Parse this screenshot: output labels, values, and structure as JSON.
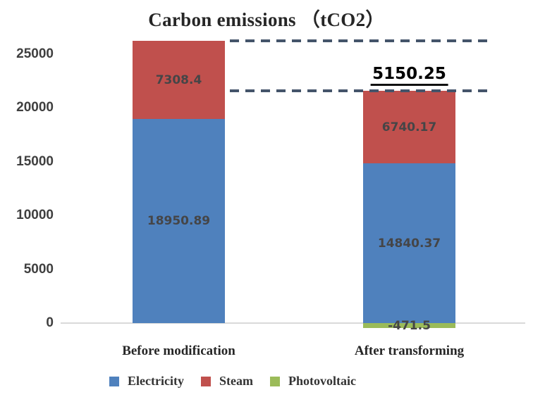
{
  "chart_data": {
    "type": "bar",
    "stacked": true,
    "title": "Carbon emissions （tCO2）",
    "categories": [
      "Before modification",
      "After transforming"
    ],
    "series": [
      {
        "name": "Electricity",
        "color": "#4F81BD",
        "values": [
          18950.89,
          14840.37
        ]
      },
      {
        "name": "Steam",
        "color": "#C0504D",
        "values": [
          7308.4,
          6740.17
        ]
      },
      {
        "name": "Photovoltaic",
        "color": "#9BBB59",
        "values": [
          null,
          -471.5
        ]
      }
    ],
    "segment_labels": [
      [
        "18950.89",
        "14840.37"
      ],
      [
        "7308.4",
        "6740.17"
      ],
      [
        "",
        "-471.5"
      ]
    ],
    "y_ticks": [
      0,
      5000,
      10000,
      15000,
      20000,
      25000
    ],
    "grid": false,
    "legend": [
      "Electricity",
      "Steam",
      "Photovoltaic"
    ],
    "legend_position": "bottom",
    "annotation": {
      "label": "5150.25"
    },
    "colors": {
      "axis_line": "#D9D9D9",
      "guide_line": "#44546A",
      "value_label": "#454547",
      "text": "#262626"
    }
  }
}
